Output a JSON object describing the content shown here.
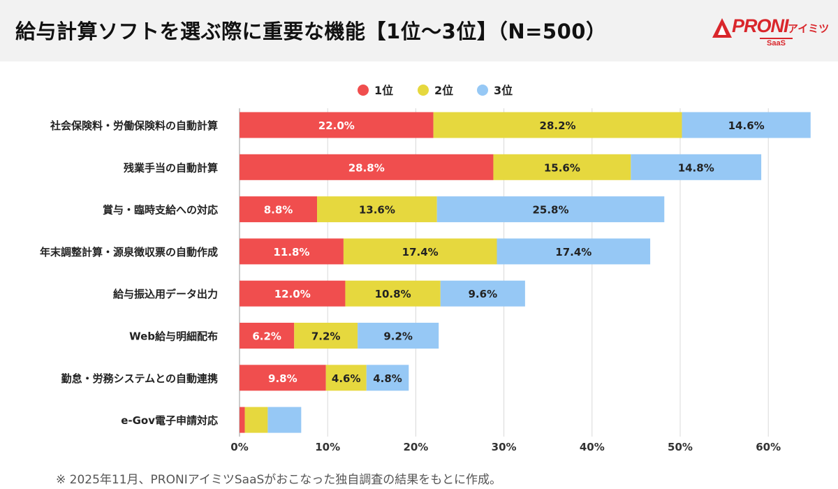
{
  "header": {
    "title": "給与計算ソフトを選ぶ際に重要な機能【1位〜3位】（N=500）",
    "logo_brand": "PRONI",
    "logo_sub": "アイミツ",
    "logo_tag": "SaaS"
  },
  "footnote": "※ 2025年11月、PRONIアイミツSaaSがおこなった独自調査の結果をもとに作成。",
  "colors": {
    "rank1": "#f04e4e",
    "rank2": "#e6d83e",
    "rank3": "#96c8f5",
    "grid": "#d9d9d9"
  },
  "chart_data": {
    "type": "bar",
    "orientation": "horizontal",
    "stacked": true,
    "categories": [
      "社会保険料・労働保険料の自動計算",
      "残業手当の自動計算",
      "賞与・臨時支給への対応",
      "年末調整計算・源泉徴収票の自動作成",
      "給与振込用データ出力",
      "Web給与明細配布",
      "勤怠・労務システムとの自動連携",
      "e-Gov電子申請対応"
    ],
    "series": [
      {
        "name": "1位",
        "values": [
          22.0,
          28.8,
          8.8,
          11.8,
          12.0,
          6.2,
          9.8,
          0.6
        ]
      },
      {
        "name": "2位",
        "values": [
          28.2,
          15.6,
          13.6,
          17.4,
          10.8,
          7.2,
          4.6,
          2.6
        ]
      },
      {
        "name": "3位",
        "values": [
          14.6,
          14.8,
          25.8,
          17.4,
          9.6,
          9.2,
          4.8,
          3.8
        ]
      }
    ],
    "data_labels": [
      [
        "22.0%",
        "28.8%",
        "8.8%",
        "11.8%",
        "12.0%",
        "6.2%",
        "9.8%",
        ""
      ],
      [
        "28.2%",
        "15.6%",
        "13.6%",
        "17.4%",
        "10.8%",
        "7.2%",
        "4.6%",
        ""
      ],
      [
        "14.6%",
        "14.8%",
        "25.8%",
        "17.4%",
        "9.6%",
        "9.2%",
        "4.8%",
        ""
      ]
    ],
    "xlim": [
      0,
      65
    ],
    "xticks": [
      0,
      10,
      20,
      30,
      40,
      50,
      60
    ],
    "xtick_labels": [
      "0%",
      "10%",
      "20%",
      "30%",
      "40%",
      "50%",
      "60%"
    ],
    "grid": true,
    "legend_position": "top-center"
  }
}
